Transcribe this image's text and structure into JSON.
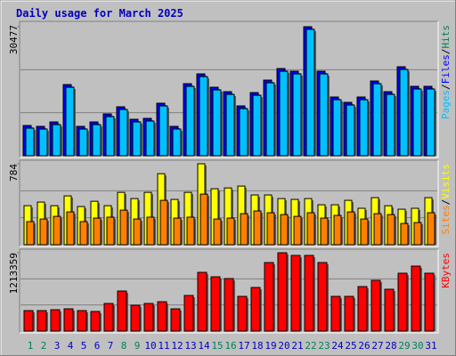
{
  "chart_data": [
    {
      "type": "bar",
      "title": "Daily usage for March 2025",
      "legend_separator": "/",
      "series": [
        {
          "name": "Hits",
          "color": "#00805c",
          "values": [
            7140,
            6930,
            7980,
            16800,
            6930,
            7980,
            9870,
            11550,
            8610,
            8820,
            12390,
            6930,
            17010,
            19320,
            16170,
            15120,
            11760,
            14910,
            17850,
            20580,
            19950,
            30477,
            19950,
            13860,
            12600,
            13860,
            17640,
            15120,
            21000,
            16380,
            16380
          ]
        },
        {
          "name": "Files",
          "color": "#0000ff",
          "values": [
            7140,
            6930,
            7980,
            16800,
            6930,
            7980,
            9870,
            11550,
            8610,
            8820,
            12390,
            6930,
            17010,
            19320,
            16170,
            15120,
            11760,
            14910,
            17850,
            20580,
            19950,
            30477,
            19950,
            13860,
            12600,
            13860,
            17640,
            15120,
            21000,
            16380,
            16380
          ]
        },
        {
          "name": "Pages",
          "color": "#00c0ff",
          "values": [
            6510,
            6300,
            7350,
            16170,
            6300,
            7350,
            9240,
            10920,
            7980,
            8190,
            11760,
            6300,
            16380,
            18690,
            15540,
            14490,
            11130,
            14280,
            17220,
            19950,
            19320,
            29850,
            19320,
            13230,
            11970,
            13230,
            17010,
            14490,
            20370,
            15750,
            15750
          ]
        }
      ],
      "ylim": [
        0,
        30477
      ],
      "yticks": [
        30477
      ]
    },
    {
      "type": "bar",
      "legend_separator": "/",
      "series": [
        {
          "name": "Visits",
          "color": "#ffff00",
          "values": [
            378,
            413,
            378,
            473,
            370,
            421,
            378,
            507,
            447,
            507,
            688,
            439,
            507,
            784,
            542,
            550,
            568,
            482,
            482,
            447,
            439,
            447,
            387,
            387,
            430,
            353,
            456,
            378,
            344,
            353,
            456
          ]
        },
        {
          "name": "Sites",
          "color": "#ff8000",
          "values": [
            224,
            249,
            275,
            318,
            224,
            258,
            267,
            335,
            249,
            267,
            430,
            258,
            267,
            490,
            249,
            258,
            301,
            327,
            310,
            292,
            275,
            310,
            258,
            284,
            318,
            249,
            301,
            292,
            206,
            215,
            310
          ]
        }
      ],
      "ylim": [
        0,
        784
      ],
      "yticks": [
        784
      ]
    },
    {
      "type": "bar",
      "categories": [
        "1",
        "2",
        "3",
        "4",
        "5",
        "6",
        "7",
        "8",
        "9",
        "10",
        "11",
        "12",
        "13",
        "14",
        "15",
        "16",
        "17",
        "18",
        "19",
        "20",
        "21",
        "22",
        "23",
        "24",
        "25",
        "26",
        "27",
        "28",
        "29",
        "30",
        "31"
      ],
      "category_colors": [
        "#00805c",
        "#00805c",
        "#0000c0",
        "#0000c0",
        "#0000c0",
        "#0000c0",
        "#0000c0",
        "#00805c",
        "#00805c",
        "#0000c0",
        "#0000c0",
        "#0000c0",
        "#0000c0",
        "#0000c0",
        "#00805c",
        "#00805c",
        "#0000c0",
        "#0000c0",
        "#0000c0",
        "#0000c0",
        "#0000c0",
        "#00805c",
        "#00805c",
        "#0000c0",
        "#0000c0",
        "#0000c0",
        "#0000c0",
        "#0000c0",
        "#00805c",
        "#00805c",
        "#0000c0"
      ],
      "series": [
        {
          "name": "KBytes",
          "color": "#ff0000",
          "values": [
            317124,
            317124,
            330912,
            344700,
            317124,
            303336,
            427428,
            620460,
            399852,
            427428,
            455004,
            344700,
            551520,
            910008,
            841068,
            813492,
            537732,
            675612,
            1061676,
            1213359,
            1171980,
            1171980,
            1061676,
            537732,
            537732,
            689400,
            785916,
            648036,
            896220,
            1006524,
            896220
          ]
        }
      ],
      "ylim": [
        0,
        1213359
      ],
      "yticks": [
        1213359
      ]
    }
  ]
}
